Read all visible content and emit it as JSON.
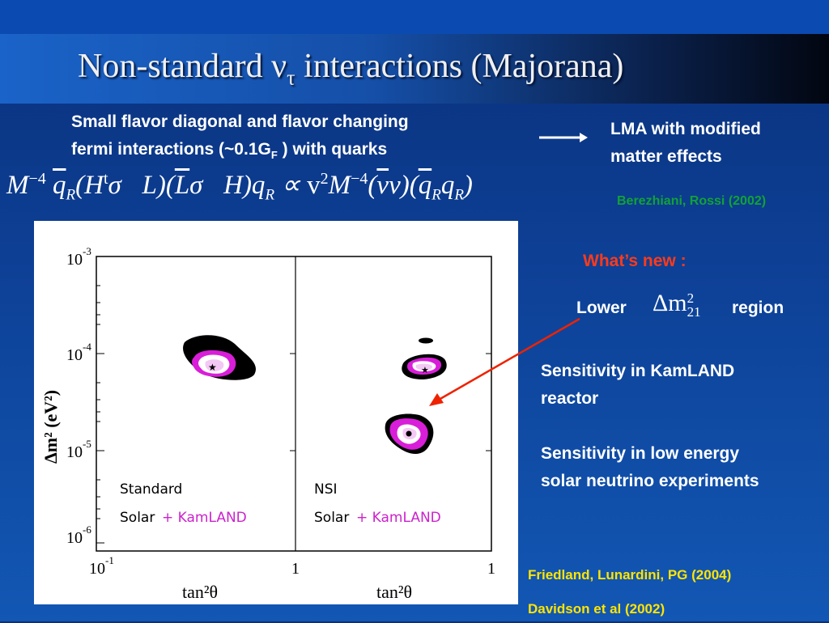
{
  "title": {
    "main": "Non-standard ν",
    "sub": "τ",
    "rest": " interactions (Majorana)"
  },
  "intro": {
    "line1": "Small flavor diagonal and flavor changing",
    "line2_pre": "fermi interactions (~0.1G",
    "line2_sub": "F",
    "line2_post": " ) with quarks"
  },
  "result": {
    "line1": "LMA with modified",
    "line2": "matter effects"
  },
  "citation_berezhiani": "Berezhiani, Rossi  (2002)",
  "whats_new": "What’s new :",
  "lower": {
    "pre": "Lower",
    "post": "region",
    "symbol": "Δm",
    "sup": "2",
    "sub": "21"
  },
  "sensitivity": {
    "kamland_1": "Sensitivity in KamLAND",
    "kamland_2": "reactor",
    "solar_1": "Sensitivity in low energy",
    "solar_2": "solar neutrino experiments"
  },
  "citations": {
    "friedland": "Friedland, Lunardini, PG (2004)",
    "davidson": "Davidson et al (2002)"
  },
  "figure": {
    "ylabel": "Δm² (eV²)",
    "yticks": [
      {
        "base": "10",
        "exp": "-3"
      },
      {
        "base": "10",
        "exp": "-4"
      },
      {
        "base": "10",
        "exp": "-5"
      },
      {
        "base": "10",
        "exp": "-6"
      }
    ],
    "left_panel": {
      "label": "Standard",
      "solar": "Solar",
      "kamland": "+ KamLAND",
      "xtick_left": "10",
      "xtick_left_exp": "-1",
      "xtick_right": "1",
      "xlabel": "tan²θ"
    },
    "right_panel": {
      "label": "NSI",
      "solar": "Solar",
      "kamland": "+ KamLAND",
      "xtick_right": "1",
      "xlabel": "tan²θ"
    }
  },
  "colors": {
    "kamland_magenta": "#cc22cc",
    "arrow_red": "#ee2200",
    "citation_green": "#11a236",
    "citation_yellow": "#ffe400"
  }
}
